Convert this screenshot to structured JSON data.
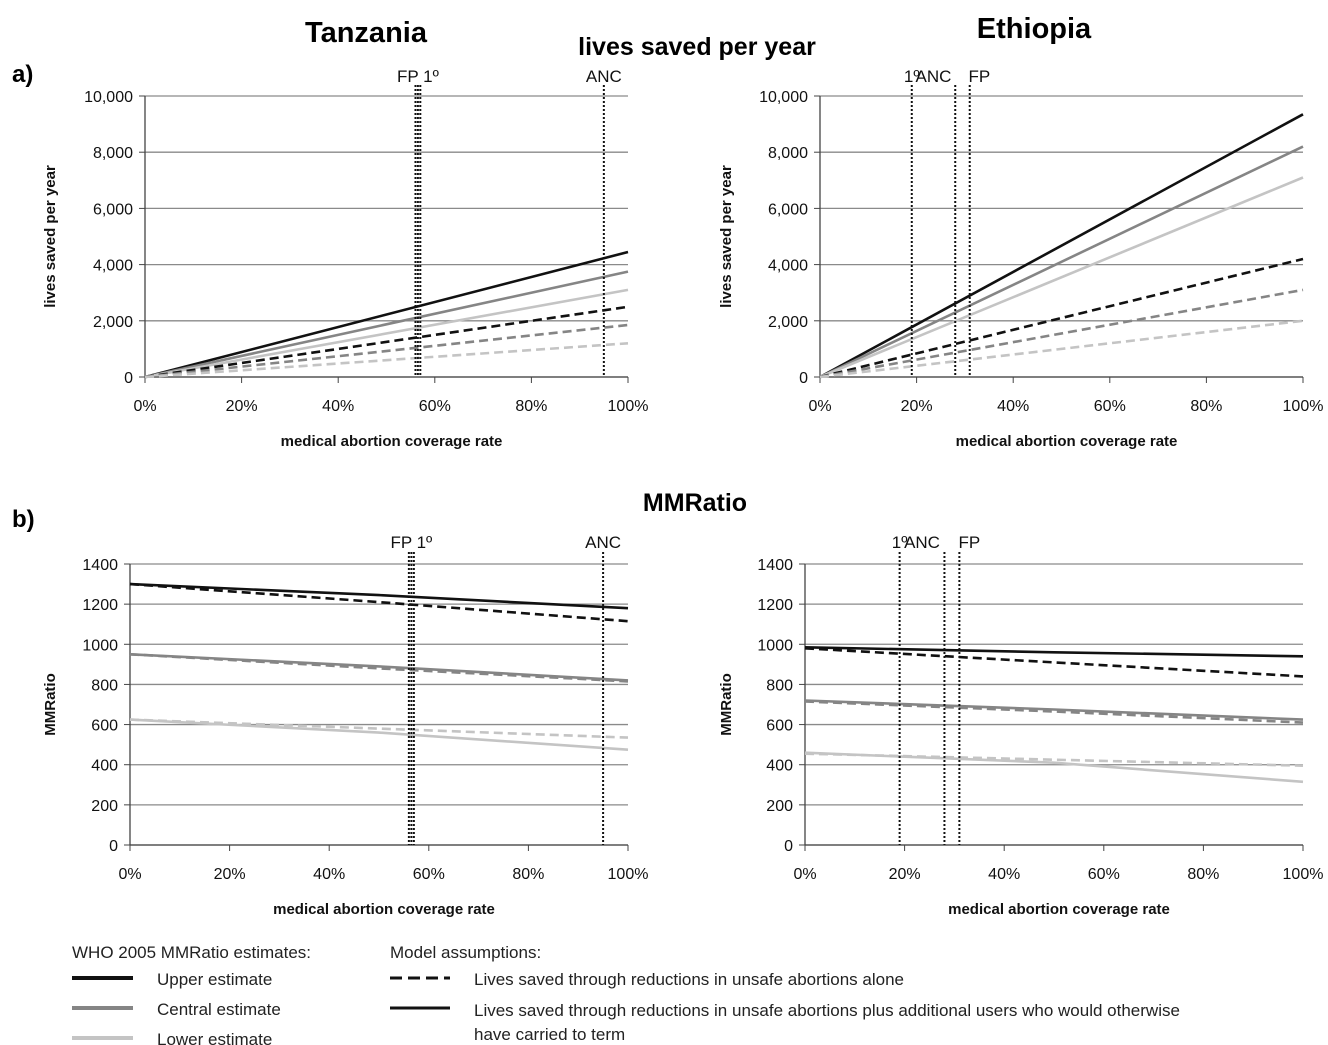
{
  "section_a": {
    "panel_label": "a)",
    "title": "lives saved per year"
  },
  "section_b": {
    "panel_label": "b)",
    "title": "MMRatio"
  },
  "countries": {
    "left": "Tanzania",
    "right": "Ethiopia"
  },
  "colors": {
    "upper": "#111111",
    "central": "#858585",
    "lower": "#c4c4c4",
    "grid": "#8a8a8a",
    "axis": "#444444"
  },
  "legend": {
    "who_heading": "WHO 2005 MMRatio  estimates:",
    "who_items": [
      {
        "label": "Upper estimate",
        "tone": "upper"
      },
      {
        "label": "Central estimate",
        "tone": "central"
      },
      {
        "label": "Lower estimate",
        "tone": "lower"
      }
    ],
    "model_heading": "Model assumptions:",
    "model_items": [
      {
        "lines": [
          "Lives saved through reductions in unsafe abortions alone"
        ],
        "dash": "dashed"
      },
      {
        "lines": [
          "Lives saved through reductions in unsafe abortions plus additional users who would otherwise",
          "have carried to term"
        ],
        "dash": "solid"
      }
    ]
  },
  "chart_data": [
    {
      "id": "tanzania-lives",
      "type": "line",
      "xlabel": "medical abortion coverage rate",
      "ylabel": "lives saved  per year",
      "xlim": [
        0,
        100
      ],
      "ylim": [
        0,
        10000
      ],
      "xticks": [
        0,
        20,
        40,
        60,
        80,
        100
      ],
      "xtick_labels": [
        "0%",
        "20%",
        "40%",
        "60%",
        "80%",
        "100%"
      ],
      "yticks": [
        0,
        2000,
        4000,
        6000,
        8000,
        10000
      ],
      "ytick_labels": [
        "0",
        "2,000",
        "4,000",
        "6,000",
        "8,000",
        "10,000"
      ],
      "ref_lines": [
        56,
        56.5,
        57,
        95
      ],
      "ref_labels": [
        {
          "text": "FP 1º",
          "x": 56.5
        },
        {
          "text": "ANC",
          "x": 95
        }
      ],
      "series": [
        {
          "tone": "upper",
          "dash": "solid",
          "x": [
            0,
            100
          ],
          "y": [
            0,
            4450
          ]
        },
        {
          "tone": "central",
          "dash": "solid",
          "x": [
            0,
            100
          ],
          "y": [
            0,
            3750
          ]
        },
        {
          "tone": "lower",
          "dash": "solid",
          "x": [
            0,
            100
          ],
          "y": [
            0,
            3100
          ]
        },
        {
          "tone": "upper",
          "dash": "dashed",
          "x": [
            0,
            100
          ],
          "y": [
            0,
            2500
          ]
        },
        {
          "tone": "central",
          "dash": "dashed",
          "x": [
            0,
            100
          ],
          "y": [
            0,
            1850
          ]
        },
        {
          "tone": "lower",
          "dash": "dashed",
          "x": [
            0,
            100
          ],
          "y": [
            0,
            1200
          ]
        }
      ]
    },
    {
      "id": "ethiopia-lives",
      "type": "line",
      "xlabel": "medical abortion coverage rate",
      "ylabel": "lives saved  per year",
      "xlim": [
        0,
        100
      ],
      "ylim": [
        0,
        10000
      ],
      "xticks": [
        0,
        20,
        40,
        60,
        80,
        100
      ],
      "xtick_labels": [
        "0%",
        "20%",
        "40%",
        "60%",
        "80%",
        "100%"
      ],
      "yticks": [
        0,
        2000,
        4000,
        6000,
        8000,
        10000
      ],
      "ytick_labels": [
        "0",
        "2,000",
        "4,000",
        "6,000",
        "8,000",
        "10,000"
      ],
      "ref_lines": [
        19,
        28,
        31
      ],
      "ref_labels": [
        {
          "text": "1º",
          "x": 19
        },
        {
          "text": "ANC",
          "x": 23.5
        },
        {
          "text": "FP",
          "x": 33
        }
      ],
      "series": [
        {
          "tone": "upper",
          "dash": "solid",
          "x": [
            0,
            100
          ],
          "y": [
            0,
            9350
          ]
        },
        {
          "tone": "central",
          "dash": "solid",
          "x": [
            0,
            100
          ],
          "y": [
            0,
            8200
          ]
        },
        {
          "tone": "lower",
          "dash": "solid",
          "x": [
            0,
            100
          ],
          "y": [
            0,
            7100
          ]
        },
        {
          "tone": "upper",
          "dash": "dashed",
          "x": [
            0,
            100
          ],
          "y": [
            0,
            4200
          ]
        },
        {
          "tone": "central",
          "dash": "dashed",
          "x": [
            0,
            100
          ],
          "y": [
            0,
            3100
          ]
        },
        {
          "tone": "lower",
          "dash": "dashed",
          "x": [
            0,
            100
          ],
          "y": [
            0,
            2000
          ]
        }
      ]
    },
    {
      "id": "tanzania-mmratio",
      "type": "line",
      "xlabel": "medical abortion coverage rate",
      "ylabel": "MMRatio",
      "xlim": [
        0,
        100
      ],
      "ylim": [
        0,
        1400
      ],
      "xticks": [
        0,
        20,
        40,
        60,
        80,
        100
      ],
      "xtick_labels": [
        "0%",
        "20%",
        "40%",
        "60%",
        "80%",
        "100%"
      ],
      "yticks": [
        0,
        200,
        400,
        600,
        800,
        1000,
        1200,
        1400
      ],
      "ytick_labels": [
        "0",
        "200",
        "400",
        "600",
        "800",
        "1000",
        "1200",
        "1400"
      ],
      "ref_lines": [
        56,
        56.5,
        57,
        95
      ],
      "ref_labels": [
        {
          "text": "FP 1º",
          "x": 56.5
        },
        {
          "text": "ANC",
          "x": 95
        }
      ],
      "series": [
        {
          "tone": "upper",
          "dash": "solid",
          "x": [
            0,
            50,
            100
          ],
          "y": [
            1300,
            1245,
            1180
          ]
        },
        {
          "tone": "central",
          "dash": "solid",
          "x": [
            0,
            50,
            100
          ],
          "y": [
            950,
            890,
            820
          ]
        },
        {
          "tone": "lower",
          "dash": "solid",
          "x": [
            0,
            50,
            100
          ],
          "y": [
            625,
            560,
            475
          ]
        },
        {
          "tone": "upper",
          "dash": "dashed",
          "x": [
            0,
            50,
            100
          ],
          "y": [
            1300,
            1210,
            1115
          ]
        },
        {
          "tone": "central",
          "dash": "dashed",
          "x": [
            0,
            50,
            100
          ],
          "y": [
            950,
            880,
            815
          ]
        },
        {
          "tone": "lower",
          "dash": "dashed",
          "x": [
            0,
            50,
            100
          ],
          "y": [
            625,
            580,
            535
          ]
        }
      ]
    },
    {
      "id": "ethiopia-mmratio",
      "type": "line",
      "xlabel": "medical abortion coverage rate",
      "ylabel": "MMRatio",
      "xlim": [
        0,
        100
      ],
      "ylim": [
        0,
        1400
      ],
      "xticks": [
        0,
        20,
        40,
        60,
        80,
        100
      ],
      "xtick_labels": [
        "0%",
        "20%",
        "40%",
        "60%",
        "80%",
        "100%"
      ],
      "yticks": [
        0,
        200,
        400,
        600,
        800,
        1000,
        1200,
        1400
      ],
      "ytick_labels": [
        "0",
        "200",
        "400",
        "600",
        "800",
        "1000",
        "1200",
        "1400"
      ],
      "ref_lines": [
        19,
        28,
        31
      ],
      "ref_labels": [
        {
          "text": "1º",
          "x": 19
        },
        {
          "text": "ANC",
          "x": 23.5
        },
        {
          "text": "FP",
          "x": 33
        }
      ],
      "series": [
        {
          "tone": "upper",
          "dash": "solid",
          "x": [
            0,
            50,
            100
          ],
          "y": [
            985,
            960,
            940
          ]
        },
        {
          "tone": "central",
          "dash": "solid",
          "x": [
            0,
            50,
            100
          ],
          "y": [
            720,
            675,
            625
          ]
        },
        {
          "tone": "lower",
          "dash": "solid",
          "x": [
            0,
            50,
            100
          ],
          "y": [
            460,
            410,
            315
          ]
        },
        {
          "tone": "upper",
          "dash": "dashed",
          "x": [
            0,
            50,
            100
          ],
          "y": [
            980,
            910,
            840
          ]
        },
        {
          "tone": "central",
          "dash": "dashed",
          "x": [
            0,
            50,
            100
          ],
          "y": [
            715,
            665,
            610
          ]
        },
        {
          "tone": "lower",
          "dash": "dashed",
          "x": [
            0,
            50,
            100
          ],
          "y": [
            455,
            425,
            395
          ]
        }
      ]
    }
  ]
}
